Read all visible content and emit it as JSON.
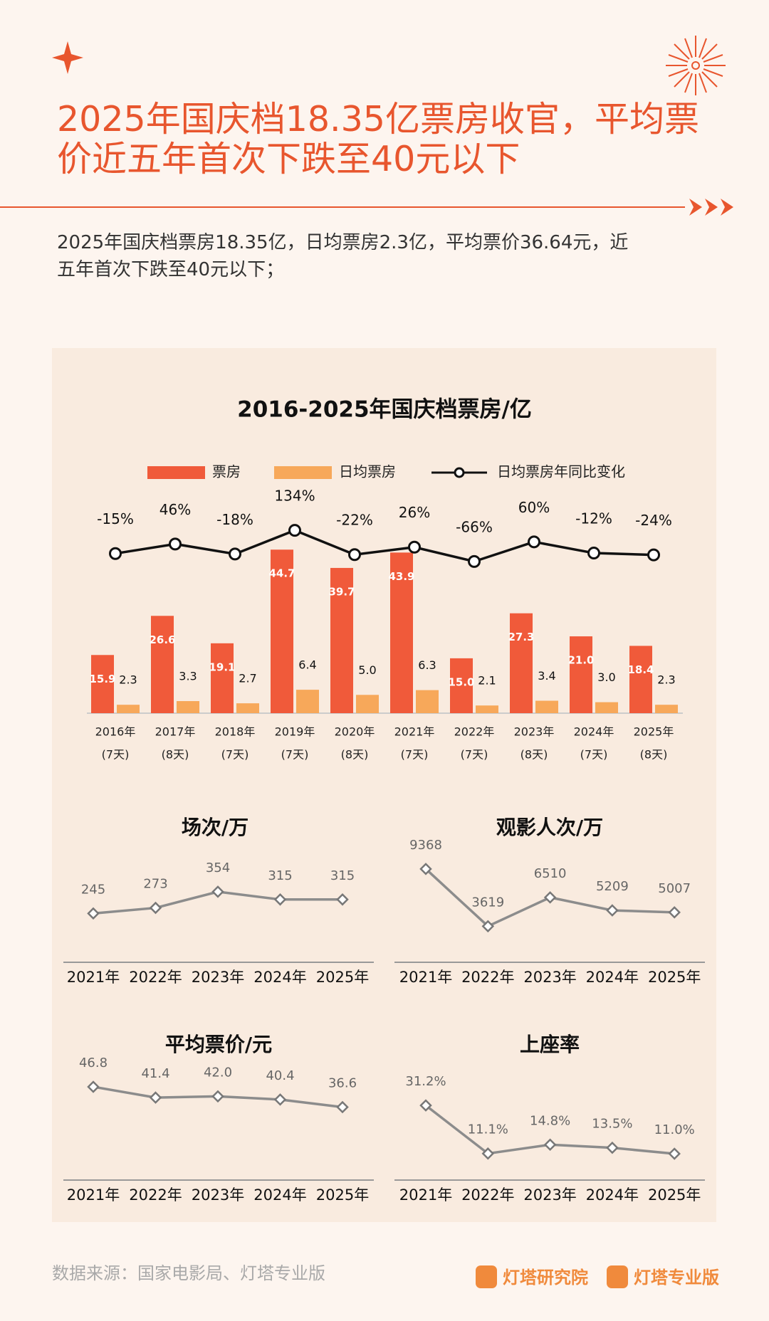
{
  "title_lines": [
    "2025年国庆档18.35亿票房收官，平均票",
    "价近五年首次下跌至40元以下"
  ],
  "description_lines": [
    "2025年国庆档票房18.35亿，日均票房2.3亿，平均票价36.64元，近",
    "五年首次下跌至40元以下；"
  ],
  "chart_data": [
    {
      "type": "bar",
      "title": "2016-2025年国庆档票房/亿",
      "categories": [
        "2016年",
        "2017年",
        "2018年",
        "2019年",
        "2020年",
        "2021年",
        "2022年",
        "2023年",
        "2024年",
        "2025年"
      ],
      "category_notes": [
        "(7天)",
        "(8天)",
        "(7天)",
        "(7天)",
        "(8天)",
        "(7天)",
        "(7天)",
        "(8天)",
        "(7天)",
        "(8天)"
      ],
      "ylim": [
        0,
        50
      ],
      "y2lim": [
        -300,
        400
      ],
      "series": [
        {
          "name": "票房",
          "type": "bar",
          "color": "#f05a3a",
          "values": [
            15.9,
            26.6,
            19.1,
            44.7,
            39.7,
            43.9,
            15,
            27.3,
            21,
            18.4
          ],
          "value_labels": [
            "15.9",
            "26.6",
            "19.1",
            "44.7",
            "39.7",
            "43.9",
            "15.0",
            "27.3",
            "21.0",
            "18.4"
          ]
        },
        {
          "name": "日均票房",
          "type": "bar",
          "color": "#f7a85a",
          "values": [
            2.3,
            3.3,
            2.7,
            6.4,
            5,
            6.3,
            2.1,
            3.4,
            3,
            2.3
          ],
          "value_labels": [
            "2.3",
            "3.3",
            "2.7",
            "6.4",
            "5.0",
            "6.3",
            "2.1",
            "3.4",
            "3.0",
            "2.3"
          ]
        },
        {
          "name": "日均票房年同比变化",
          "type": "line",
          "axis": "y2",
          "color": "#111111",
          "values": [
            -15,
            46,
            -18,
            134,
            -22,
            26,
            -66,
            60,
            -12,
            -24
          ],
          "value_labels": [
            "-15%",
            "46%",
            "-18%",
            "134%",
            "-22%",
            "26%",
            "-66%",
            "60%",
            "-12%",
            "-24%"
          ]
        }
      ]
    },
    {
      "type": "line",
      "title": "场次/万",
      "color": "#8c8c8c",
      "categories": [
        "2021年",
        "2022年",
        "2023年",
        "2024年",
        "2025年"
      ],
      "values": [
        245,
        273,
        354,
        315,
        315
      ],
      "ylim": [
        0,
        600
      ]
    },
    {
      "type": "line",
      "title": "观影人次/万",
      "color": "#8c8c8c",
      "categories": [
        "2021年",
        "2022年",
        "2023年",
        "2024年",
        "2025年"
      ],
      "values": [
        9368,
        3619,
        6510,
        5209,
        5007
      ],
      "ylim": [
        0,
        12000
      ]
    },
    {
      "type": "line",
      "title": "平均票价/元",
      "color": "#8c8c8c",
      "categories": [
        "2021年",
        "2022年",
        "2023年",
        "2024年",
        "2025年"
      ],
      "values": [
        46.8,
        41.4,
        42,
        40.4,
        36.6
      ],
      "value_labels": [
        "46.8",
        "41.4",
        "42.0",
        "40.4",
        "36.6"
      ],
      "ylim": [
        0,
        60
      ]
    },
    {
      "type": "line",
      "title": "上座率",
      "color": "#8c8c8c",
      "categories": [
        "2021年",
        "2022年",
        "2023年",
        "2024年",
        "2025年"
      ],
      "values": [
        31.2,
        11.1,
        14.8,
        13.5,
        11
      ],
      "value_labels": [
        "31.2%",
        "11.1%",
        "14.8%",
        "13.5%",
        "11.0%"
      ],
      "ylim": [
        0,
        50
      ]
    }
  ],
  "source": "数据来源：国家电影局、灯塔专业版",
  "brands": [
    "灯塔研究院",
    "灯塔专业版"
  ]
}
